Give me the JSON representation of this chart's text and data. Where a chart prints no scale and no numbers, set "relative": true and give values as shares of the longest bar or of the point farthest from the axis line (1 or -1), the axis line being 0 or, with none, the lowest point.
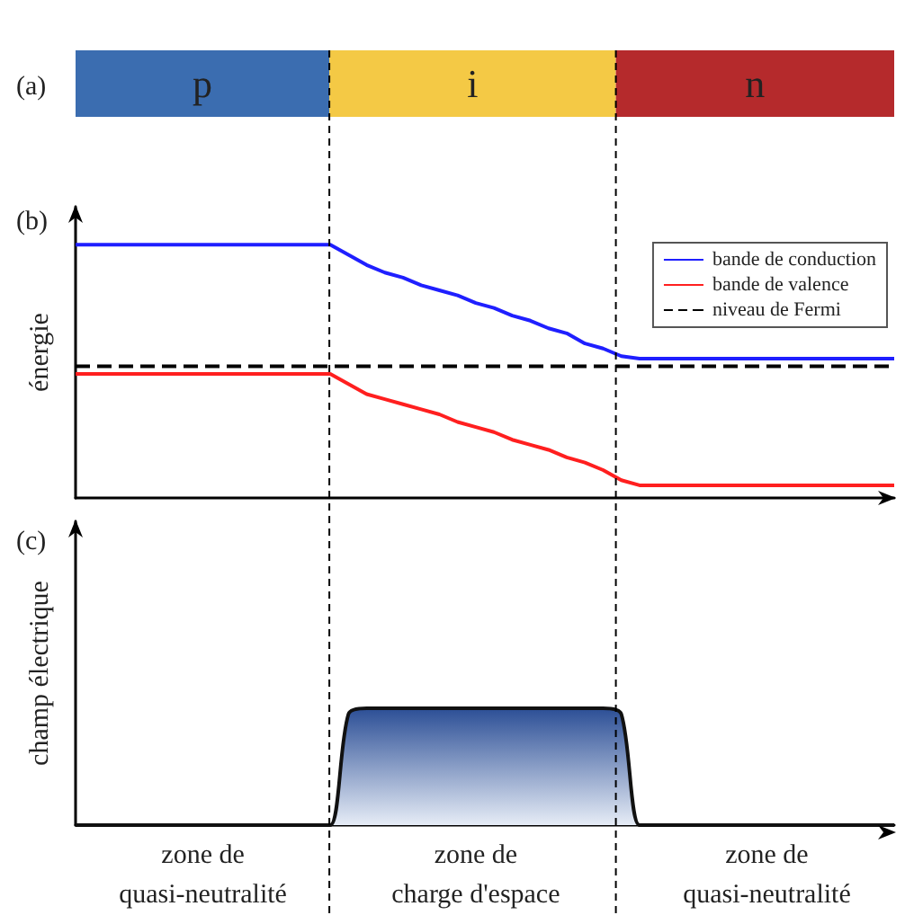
{
  "chart_data": [
    {
      "type": "bar",
      "title": "(a)",
      "orientation": "horizontal",
      "stacked": true,
      "relative": true,
      "categories": [
        null
      ],
      "series": [
        {
          "name": "p",
          "color": "#3b6db0",
          "values": [
            0.31
          ]
        },
        {
          "name": "i",
          "color": "#f4c945",
          "values": [
            0.35
          ]
        },
        {
          "name": "n",
          "color": "#b52a2c",
          "values": [
            0.34
          ]
        }
      ]
    },
    {
      "type": "line",
      "title": "(b)",
      "ylabel": "énergie",
      "relative": true,
      "legend": "top right",
      "marker": "none",
      "categories": [
        null,
        null,
        null,
        null,
        null,
        null,
        null,
        null,
        null,
        null,
        null,
        null,
        null,
        null,
        null,
        null,
        null,
        null,
        null,
        null,
        null,
        null,
        null,
        null,
        null,
        null,
        null,
        null,
        null,
        null,
        null,
        null,
        null,
        null,
        null,
        null,
        null,
        null,
        null,
        null,
        null,
        null,
        null,
        null,
        null,
        null
      ],
      "series": [
        {
          "name": "bande de conduction",
          "color": "#1f1fff",
          "values": [
            1,
            1,
            1,
            1,
            1,
            1,
            1,
            1,
            1,
            1,
            1,
            1,
            1,
            1,
            1,
            0.96,
            0.92,
            0.89,
            0.87,
            0.84,
            0.82,
            0.8,
            0.77,
            0.75,
            0.72,
            0.7,
            0.67,
            0.65,
            0.61,
            0.59,
            0.56,
            0.55,
            0.55,
            0.55,
            0.55,
            0.55,
            0.55,
            0.55,
            0.55,
            0.55,
            0.55,
            0.55,
            0.55,
            0.55,
            0.55,
            0.55
          ]
        },
        {
          "name": "bande de valence",
          "color": "#ff1f1f",
          "values": [
            0.49,
            0.49,
            0.49,
            0.49,
            0.49,
            0.49,
            0.49,
            0.49,
            0.49,
            0.49,
            0.49,
            0.49,
            0.49,
            0.49,
            0.49,
            0.45,
            0.41,
            0.39,
            0.37,
            0.35,
            0.33,
            0.3,
            0.28,
            0.26,
            0.23,
            0.21,
            0.19,
            0.16,
            0.14,
            0.11,
            0.07,
            0.05,
            0.05,
            0.05,
            0.05,
            0.05,
            0.05,
            0.05,
            0.05,
            0.05,
            0.05,
            0.05,
            0.05,
            0.05,
            0.05,
            0.05
          ]
        },
        {
          "name": "niveau de Fermi",
          "color": "#000000",
          "line_style": "dashed",
          "values": [
            0.52,
            0.52,
            0.52,
            0.52,
            0.52,
            0.52,
            0.52,
            0.52,
            0.52,
            0.52,
            0.52,
            0.52,
            0.52,
            0.52,
            0.52,
            0.52,
            0.52,
            0.52,
            0.52,
            0.52,
            0.52,
            0.52,
            0.52,
            0.52,
            0.52,
            0.52,
            0.52,
            0.52,
            0.52,
            0.52,
            0.52,
            0.52,
            0.52,
            0.52,
            0.52,
            0.52,
            0.52,
            0.52,
            0.52,
            0.52,
            0.52,
            0.52,
            0.52,
            0.52,
            0.52,
            0.52
          ]
        }
      ]
    },
    {
      "type": "area",
      "title": "(c)",
      "ylabel": "champ électrique",
      "relative": true,
      "marker": "none",
      "color": "#2c4f96",
      "categories": [
        null,
        null,
        null,
        null,
        null,
        null,
        null,
        "zone de\nquasi-neutralité",
        null,
        null,
        null,
        null,
        null,
        null,
        null,
        null,
        null,
        null,
        null,
        null,
        null,
        null,
        "zone de\ncharge d'espace",
        null,
        null,
        null,
        null,
        null,
        null,
        null,
        null,
        null,
        null,
        null,
        null,
        null,
        null,
        null,
        "zone de\nquasi-neutralité",
        null,
        null,
        null,
        null,
        null,
        null,
        null
      ],
      "values": [
        0,
        0,
        0,
        0,
        0,
        0,
        0,
        0,
        0,
        0,
        0,
        0,
        0,
        0,
        0,
        0.95,
        1,
        1,
        1,
        1,
        1,
        1,
        1,
        1,
        1,
        1,
        1,
        1,
        1,
        1,
        0.95,
        0,
        0,
        0,
        0,
        0,
        0,
        0,
        0,
        0,
        0,
        0,
        0,
        0,
        0,
        0
      ]
    }
  ]
}
